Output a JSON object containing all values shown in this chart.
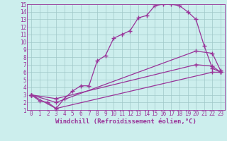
{
  "xlabel": "Windchill (Refroidissement éolien,°C)",
  "bg_color": "#cceeed",
  "grid_color": "#a0c8c8",
  "line_color": "#993399",
  "xlim": [
    -0.5,
    23.5
  ],
  "ylim": [
    1,
    15
  ],
  "xticks": [
    0,
    1,
    2,
    3,
    4,
    5,
    6,
    7,
    8,
    9,
    10,
    11,
    12,
    13,
    14,
    15,
    16,
    17,
    18,
    19,
    20,
    21,
    22,
    23
  ],
  "yticks": [
    1,
    2,
    3,
    4,
    5,
    6,
    7,
    8,
    9,
    10,
    11,
    12,
    13,
    14,
    15
  ],
  "line1_x": [
    0,
    1,
    2,
    3,
    4,
    5,
    6,
    7,
    8,
    9,
    10,
    11,
    12,
    13,
    14,
    15,
    16,
    17,
    18,
    19,
    20,
    21,
    22,
    23
  ],
  "line1_y": [
    3.0,
    2.2,
    2.0,
    1.2,
    2.5,
    3.5,
    4.2,
    4.2,
    7.5,
    8.2,
    10.5,
    11.0,
    11.5,
    13.2,
    13.5,
    14.8,
    15.0,
    15.0,
    14.8,
    14.0,
    13.0,
    9.5,
    6.5,
    6.0
  ],
  "line2_x": [
    0,
    3,
    22,
    23
  ],
  "line2_y": [
    3.0,
    1.2,
    6.0,
    6.0
  ],
  "line3_x": [
    0,
    3,
    20,
    22,
    23
  ],
  "line3_y": [
    3.0,
    2.0,
    8.8,
    8.5,
    6.2
  ],
  "line4_x": [
    0,
    3,
    20,
    22,
    23
  ],
  "line4_y": [
    3.0,
    2.5,
    7.0,
    6.8,
    6.0
  ],
  "marker": "+",
  "markersize": 4,
  "linewidth": 0.9,
  "xlabel_fontsize": 6.5,
  "tick_fontsize": 5.5
}
